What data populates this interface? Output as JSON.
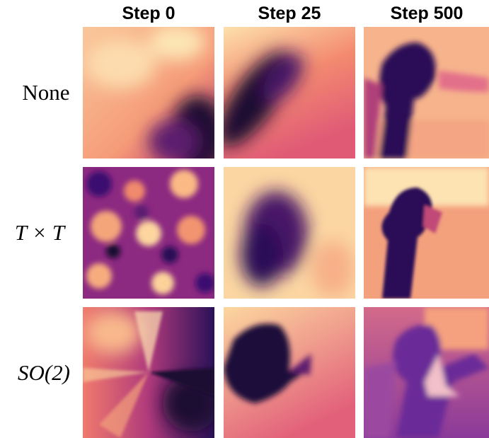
{
  "columns": [
    "Step 0",
    "Step 25",
    "Step 500"
  ],
  "rows": [
    "None",
    "T × T",
    "SO(2)"
  ]
}
